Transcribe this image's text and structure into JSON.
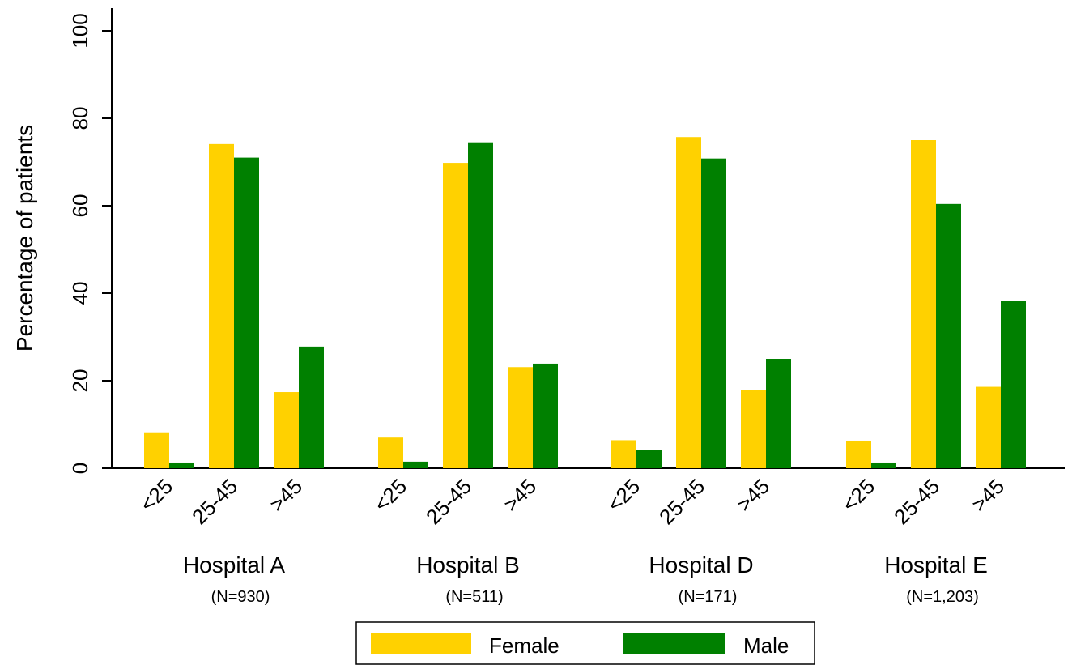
{
  "chart_data": {
    "type": "bar",
    "ylabel": "Percentage of patients",
    "ylim": [
      0,
      100
    ],
    "yticks": [
      "0",
      "20",
      "40",
      "60",
      "80",
      "100"
    ],
    "categories": [
      "<25",
      "25-45",
      ">45"
    ],
    "groups": [
      {
        "name": "Hospital A",
        "n_label": "(N=930)"
      },
      {
        "name": "Hospital B",
        "n_label": "(N=511)"
      },
      {
        "name": "Hospital D",
        "n_label": "(N=171)"
      },
      {
        "name": "Hospital E",
        "n_label": "(N=1,203)"
      }
    ],
    "series": [
      {
        "name": "Female",
        "color": "#FFD100",
        "values": [
          [
            8.2,
            74.1,
            17.4
          ],
          [
            7.0,
            69.8,
            23.1
          ],
          [
            6.4,
            75.7,
            17.8
          ],
          [
            6.3,
            75.0,
            18.6
          ]
        ]
      },
      {
        "name": "Male",
        "color": "#008000",
        "values": [
          [
            1.3,
            71.0,
            27.8
          ],
          [
            1.5,
            74.5,
            23.9
          ],
          [
            4.1,
            70.8,
            25.0
          ],
          [
            1.3,
            60.4,
            38.2
          ]
        ]
      }
    ],
    "legend": {
      "placement": "bottom-center",
      "labels": [
        "Female",
        "Male"
      ]
    },
    "grid": false
  }
}
